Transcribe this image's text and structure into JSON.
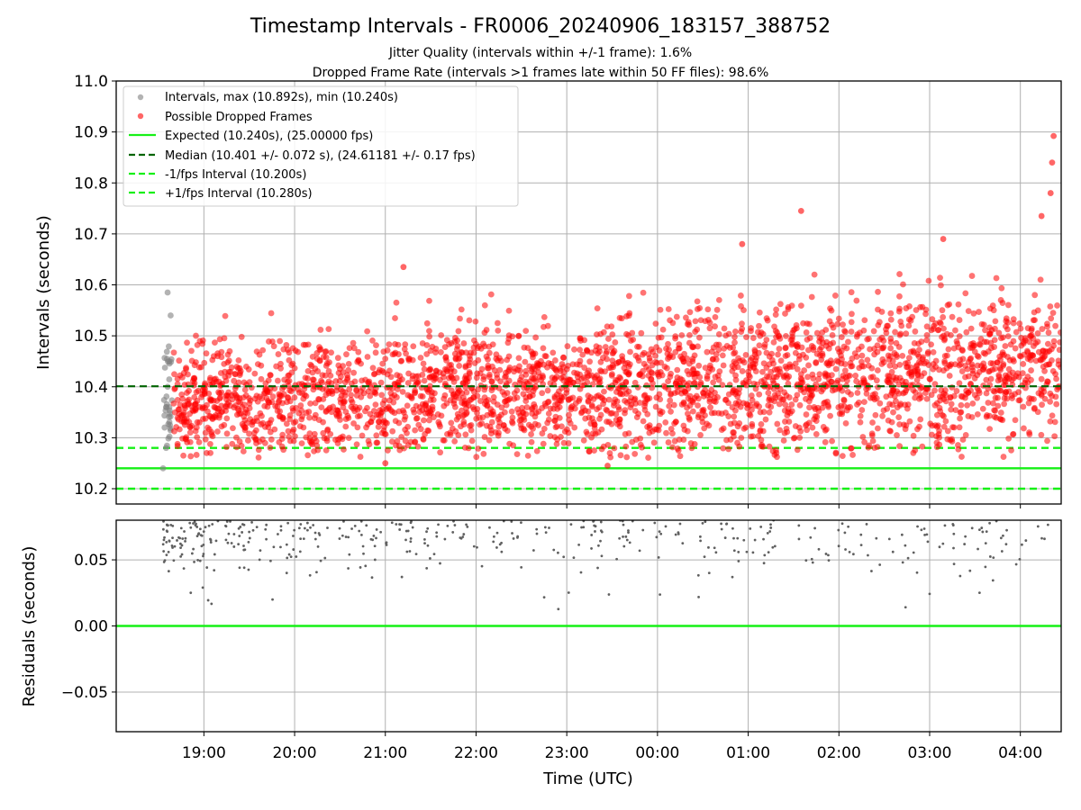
{
  "title": "Timestamp Intervals - FR0006_20240906_183157_388752",
  "subtitle1": "Jitter Quality (intervals within +/-1 frame): 1.6%",
  "subtitle2": "Dropped Frame Rate (intervals >1 frames late within 50 FF files): 98.6%",
  "colors": {
    "normal": "#808080",
    "dropped": "#ff0000",
    "expected": "#16f016",
    "median": "#006400",
    "bound": "#16f016",
    "residual": "#606060",
    "grid": "#b0b0b0"
  },
  "chart_data": [
    {
      "type": "scatter",
      "title": "",
      "xlabel": "",
      "ylabel": "Intervals (seconds)",
      "xlim": [
        "2024-09-06T18:02",
        "2024-09-07T04:27"
      ],
      "ylim": [
        10.17,
        11.0
      ],
      "y_ticks": [
        "10.2",
        "10.3",
        "10.4",
        "10.5",
        "10.6",
        "10.7",
        "10.8",
        "10.9",
        "11.0"
      ],
      "grid": true,
      "legend_position": "top-left",
      "legend": [
        "Intervals, max (10.892s), min (10.240s)",
        "Possible Dropped Frames",
        "Expected (10.240s), (25.00000 fps)",
        "Median (10.401 +/- 0.072 s), (24.61181 +/- 0.17 fps)",
        "-1/fps Interval (10.200s)",
        "+1/fps Interval (10.280s)"
      ],
      "reference_lines": {
        "expected": 10.24,
        "median": 10.401,
        "minus_1_fps": 10.2,
        "plus_1_fps": 10.28
      },
      "series": [
        {
          "name": "Intervals, max (10.892s), min (10.240s)",
          "x": [
            "2024-09-06T18:33",
            "2024-09-06T18:34",
            "2024-09-06T18:35",
            "2024-09-06T18:36",
            "2024-09-06T18:37",
            "2024-09-06T18:38",
            "2024-09-06T18:35",
            "2024-09-06T18:36"
          ],
          "y": [
            10.24,
            10.32,
            10.36,
            10.4,
            10.45,
            10.54,
            10.28,
            10.585
          ]
        },
        {
          "name": "Possible Dropped Frames",
          "x_range": [
            "2024-09-06T18:40",
            "2024-09-07T04:27"
          ],
          "y_range": [
            10.245,
            10.892
          ],
          "approximate_count": 3000,
          "notable_points": [
            {
              "x": "2024-09-06T21:12",
              "y": 10.635
            },
            {
              "x": "2024-09-07T00:56",
              "y": 10.68
            },
            {
              "x": "2024-09-07T01:35",
              "y": 10.745
            },
            {
              "x": "2024-09-07T03:09",
              "y": 10.69
            },
            {
              "x": "2024-09-07T04:14",
              "y": 10.735
            },
            {
              "x": "2024-09-07T04:20",
              "y": 10.78
            },
            {
              "x": "2024-09-07T04:21",
              "y": 10.84
            },
            {
              "x": "2024-09-07T04:22",
              "y": 10.892
            },
            {
              "x": "2024-09-06T23:27",
              "y": 10.245
            },
            {
              "x": "2024-09-06T21:00",
              "y": 10.25
            }
          ]
        }
      ]
    },
    {
      "type": "scatter",
      "title": "",
      "xlabel": "Time (UTC)",
      "ylabel": "Residuals (seconds)",
      "xlim": [
        "2024-09-06T18:02",
        "2024-09-07T04:27"
      ],
      "ylim": [
        -0.08,
        0.08
      ],
      "y_ticks": [
        "−0.05",
        "0.00",
        "0.05"
      ],
      "x_ticks": [
        "19:00",
        "20:00",
        "21:00",
        "22:00",
        "23:00",
        "00:00",
        "01:00",
        "02:00",
        "03:00",
        "04:00"
      ],
      "grid": true,
      "reference_lines": {
        "zero": 0.0
      },
      "series": [
        {
          "name": "",
          "x_range": [
            "2024-09-06T18:33",
            "2024-09-07T04:20"
          ],
          "y_range": [
            0.006,
            0.08
          ],
          "approximate_count": 420
        }
      ]
    }
  ]
}
